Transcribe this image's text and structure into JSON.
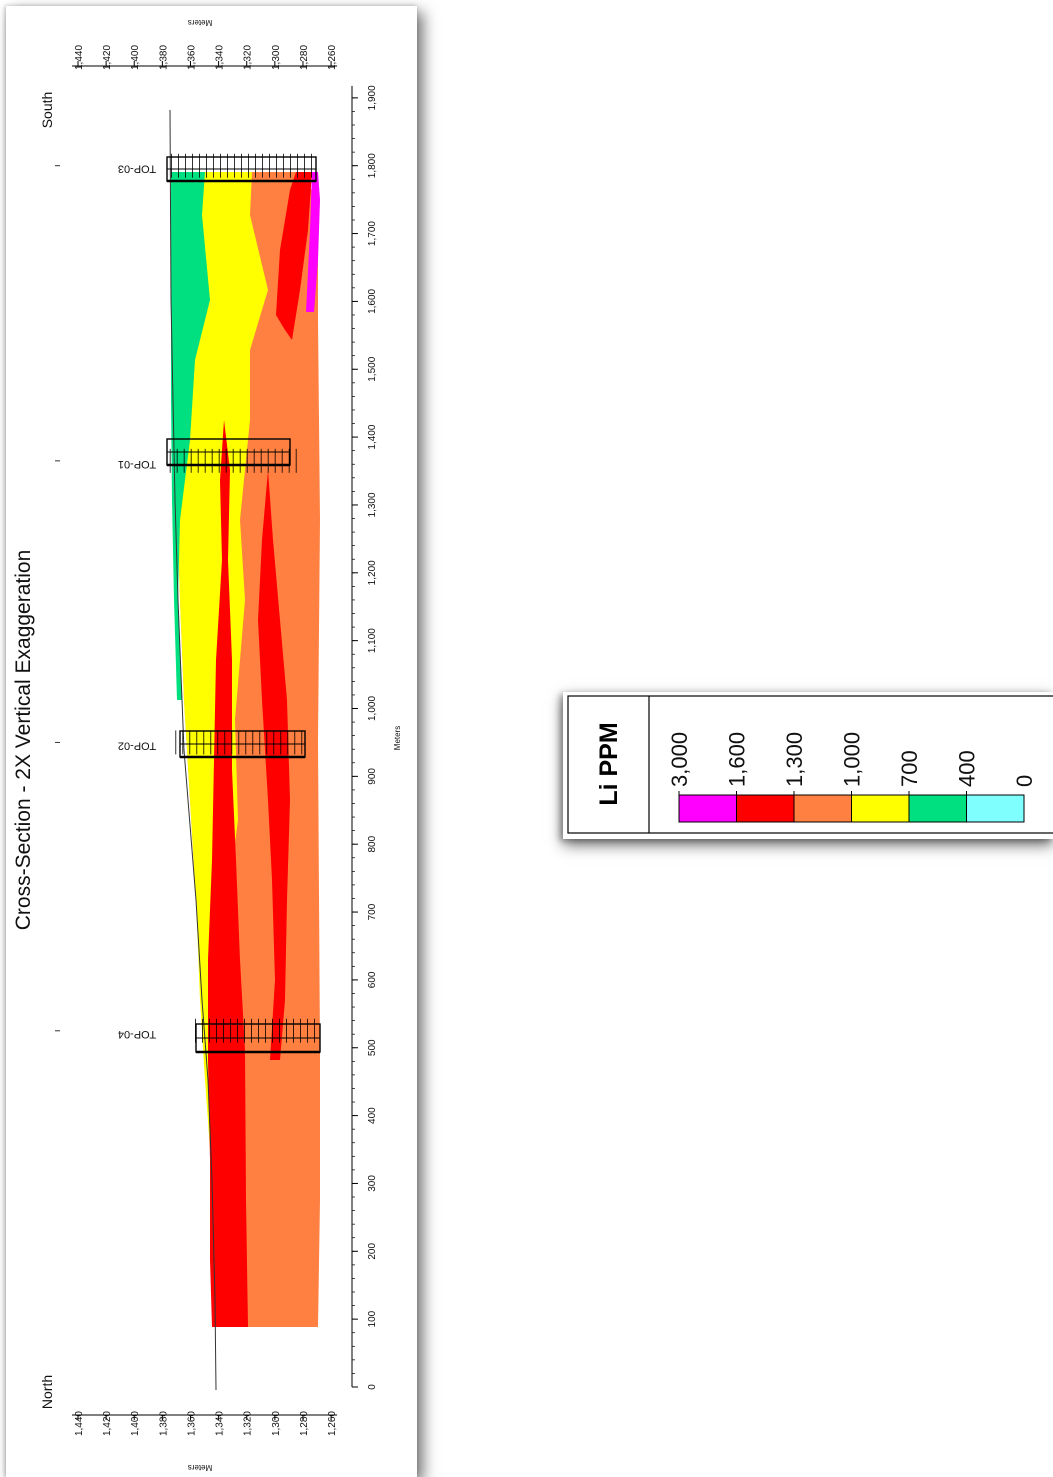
{
  "title": "Cross-Section - 2X Vertical Exaggeration",
  "directions": {
    "north": "North",
    "south": "South"
  },
  "axes": {
    "elevation_label": "Meters",
    "distance_label": "Meters",
    "elevation_ticks": [
      "1,440",
      "1,420",
      "1,400",
      "1,380",
      "1,360",
      "1,340",
      "1,320",
      "1,300",
      "1,280",
      "1,260"
    ],
    "distance_ticks": [
      "0",
      "100",
      "200",
      "300",
      "400",
      "500",
      "600",
      "700",
      "800",
      "900",
      "1,000",
      "1,100",
      "1,200",
      "1,300",
      "1,400",
      "1,500",
      "1,600",
      "1,700",
      "1,800",
      "1,900"
    ]
  },
  "drillholes": [
    {
      "name": "TOP-04",
      "distance_m": 525,
      "collar_elev_m": 1360,
      "bottom_elev_m": 1268
    },
    {
      "name": "TOP-02",
      "distance_m": 950,
      "collar_elev_m": 1374,
      "bottom_elev_m": 1280
    },
    {
      "name": "TOP-01",
      "distance_m": 1365,
      "collar_elev_m": 1378,
      "bottom_elev_m": 1284
    },
    {
      "name": "TOP-03",
      "distance_m": 1800,
      "collar_elev_m": 1377,
      "bottom_elev_m": 1272
    }
  ],
  "legend": {
    "title": "Li PPM",
    "breaks": [
      "3,000",
      "1,600",
      "1,300",
      "1,000",
      "700",
      "400",
      "0"
    ],
    "colors": [
      "#ff00ff",
      "#ff0000",
      "#ff8040",
      "#ffff00",
      "#00e080",
      "#80ffff"
    ]
  },
  "colors": {
    "magenta": "#ff00ff",
    "red": "#ff0000",
    "orange": "#ff8040",
    "yellow": "#ffff00",
    "green": "#00e080",
    "cyan": "#80ffff"
  }
}
